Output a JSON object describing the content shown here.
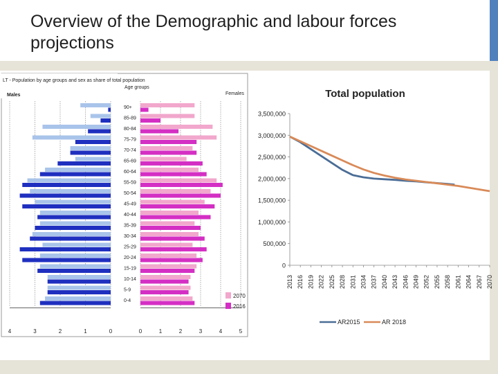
{
  "slide": {
    "title": "Overview of the Demographic and labour forces projections"
  },
  "colors": {
    "header_bar": "#4f81bd",
    "males_2070": "#a9c4ea",
    "males_2016": "#1f2fbf",
    "females_2070": "#f2a7cc",
    "females_2016": "#d42fc4",
    "ar2015": "#4a6d96",
    "ar2018": "#d98a58"
  },
  "chart_data": [
    {
      "type": "bar",
      "title": "LT - Population by age groups and sex as share of total population",
      "left_label": "Males",
      "center_label": "Age groups",
      "right_label": "Females",
      "categories": [
        "90+",
        "85-89",
        "80-84",
        "75-79",
        "70-74",
        "65-69",
        "60-64",
        "55-59",
        "50-54",
        "45-49",
        "40-44",
        "35-39",
        "30-34",
        "25-29",
        "20-24",
        "15-19",
        "10-14",
        "5-9",
        "0-4"
      ],
      "series": [
        {
          "name": "2070",
          "side": "males",
          "values": [
            1.2,
            0.8,
            2.7,
            3.1,
            1.6,
            1.4,
            2.6,
            3.3,
            3.2,
            3.0,
            2.8,
            2.8,
            3.1,
            2.7,
            2.8,
            2.8,
            2.5,
            2.5,
            2.6
          ]
        },
        {
          "name": "2016",
          "side": "males",
          "values": [
            0.1,
            0.4,
            0.9,
            1.4,
            1.6,
            2.1,
            2.8,
            3.5,
            3.6,
            3.5,
            2.9,
            3.0,
            3.2,
            3.6,
            3.5,
            2.9,
            2.5,
            2.5,
            2.8
          ]
        },
        {
          "name": "2070",
          "side": "females",
          "values": [
            2.7,
            2.7,
            3.6,
            3.8,
            2.6,
            2.3,
            2.9,
            3.8,
            3.5,
            3.2,
            2.9,
            2.7,
            2.9,
            2.6,
            2.8,
            2.8,
            2.5,
            2.5,
            2.6
          ]
        },
        {
          "name": "2016",
          "side": "females",
          "values": [
            0.4,
            1.0,
            1.9,
            2.8,
            2.8,
            3.1,
            3.3,
            4.1,
            4.0,
            3.7,
            3.5,
            3.0,
            3.2,
            3.3,
            3.1,
            2.7,
            2.4,
            2.4,
            2.7
          ]
        }
      ],
      "x_ticks_left": [
        "4",
        "3",
        "2",
        "1",
        "0"
      ],
      "x_ticks_right": [
        "0",
        "1",
        "2",
        "3",
        "4",
        "5"
      ],
      "x_range_males": [
        0,
        4
      ],
      "x_range_females": [
        0,
        5
      ],
      "legend": [
        "2070",
        "2016"
      ],
      "legend_position": "bottom-right"
    },
    {
      "type": "line",
      "title": "Total population",
      "x": [
        2013,
        2016,
        2019,
        2022,
        2025,
        2028,
        2031,
        2034,
        2037,
        2040,
        2043,
        2046,
        2049,
        2052,
        2055,
        2058,
        2061,
        2064,
        2067,
        2070
      ],
      "x_tick_labels": [
        "2013",
        "2016",
        "2019",
        "2022",
        "2025",
        "2028",
        "2031",
        "2034",
        "2037",
        "2040",
        "2043",
        "2046",
        "2049",
        "2052",
        "2055",
        "2058",
        "2061",
        "2064",
        "2067",
        "2070"
      ],
      "y_tick_labels": [
        "0",
        "500,000",
        "1,000,000",
        "1,500,000",
        "2,000,000",
        "2,500,000",
        "3,000,000",
        "3,500,000"
      ],
      "ylim": [
        0,
        3500000
      ],
      "series": [
        {
          "name": "AR2015",
          "x": [
            2013,
            2016,
            2019,
            2022,
            2025,
            2028,
            2031,
            2034,
            2037,
            2040,
            2043,
            2046,
            2049,
            2052,
            2055,
            2058,
            2060
          ],
          "values": [
            2970000,
            2840000,
            2680000,
            2520000,
            2360000,
            2200000,
            2080000,
            2030000,
            2000000,
            1985000,
            1970000,
            1950000,
            1935000,
            1915000,
            1895000,
            1875000,
            1860000
          ]
        },
        {
          "name": "AR 2018",
          "x": [
            2013,
            2016,
            2019,
            2022,
            2025,
            2028,
            2031,
            2034,
            2037,
            2040,
            2043,
            2046,
            2049,
            2052,
            2055,
            2058,
            2061,
            2064,
            2067,
            2070
          ],
          "values": [
            2970000,
            2860000,
            2750000,
            2640000,
            2530000,
            2420000,
            2310000,
            2210000,
            2130000,
            2070000,
            2020000,
            1980000,
            1950000,
            1920000,
            1890000,
            1860000,
            1830000,
            1790000,
            1750000,
            1710000
          ]
        }
      ],
      "legend_position": "bottom",
      "grid": false
    }
  ]
}
